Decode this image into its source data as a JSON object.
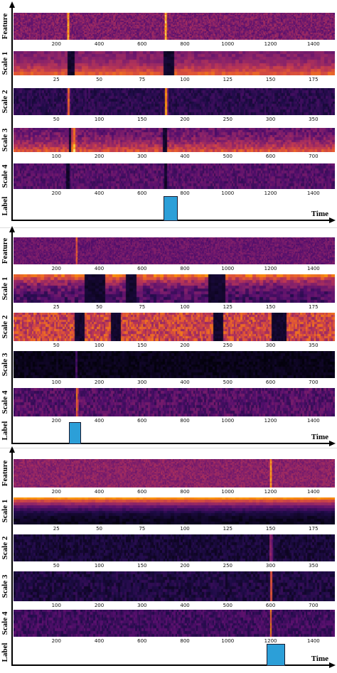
{
  "axis_labels": {
    "feature": "Feature",
    "scale1": "Scale 1",
    "scale2": "Scale 2",
    "scale3": "Scale 3",
    "scale4": "Scale 4",
    "label": "Label",
    "time": "Time"
  },
  "ticks": {
    "feature": [
      "200",
      "400",
      "600",
      "800",
      "1000",
      "1200",
      "1400"
    ],
    "scale1": [
      "25",
      "50",
      "75",
      "100",
      "125",
      "150",
      "175"
    ],
    "scale2": [
      "50",
      "100",
      "150",
      "200",
      "250",
      "300",
      "350"
    ],
    "scale3": [
      "100",
      "200",
      "300",
      "400",
      "500",
      "600",
      "700"
    ],
    "scale4": [
      "200",
      "400",
      "600",
      "800",
      "1000",
      "1200",
      "1400"
    ]
  },
  "colors": {
    "colormap": "inferno",
    "label_bar": "#2c9fd8"
  },
  "examples": [
    {
      "anomaly_time": 720,
      "label_bar_range": [
        700,
        760
      ]
    },
    {
      "anomaly_time": 300,
      "label_bar_range": [
        260,
        310
      ]
    },
    {
      "anomaly_time": 1200,
      "label_bar_range": [
        1180,
        1260
      ]
    }
  ]
}
